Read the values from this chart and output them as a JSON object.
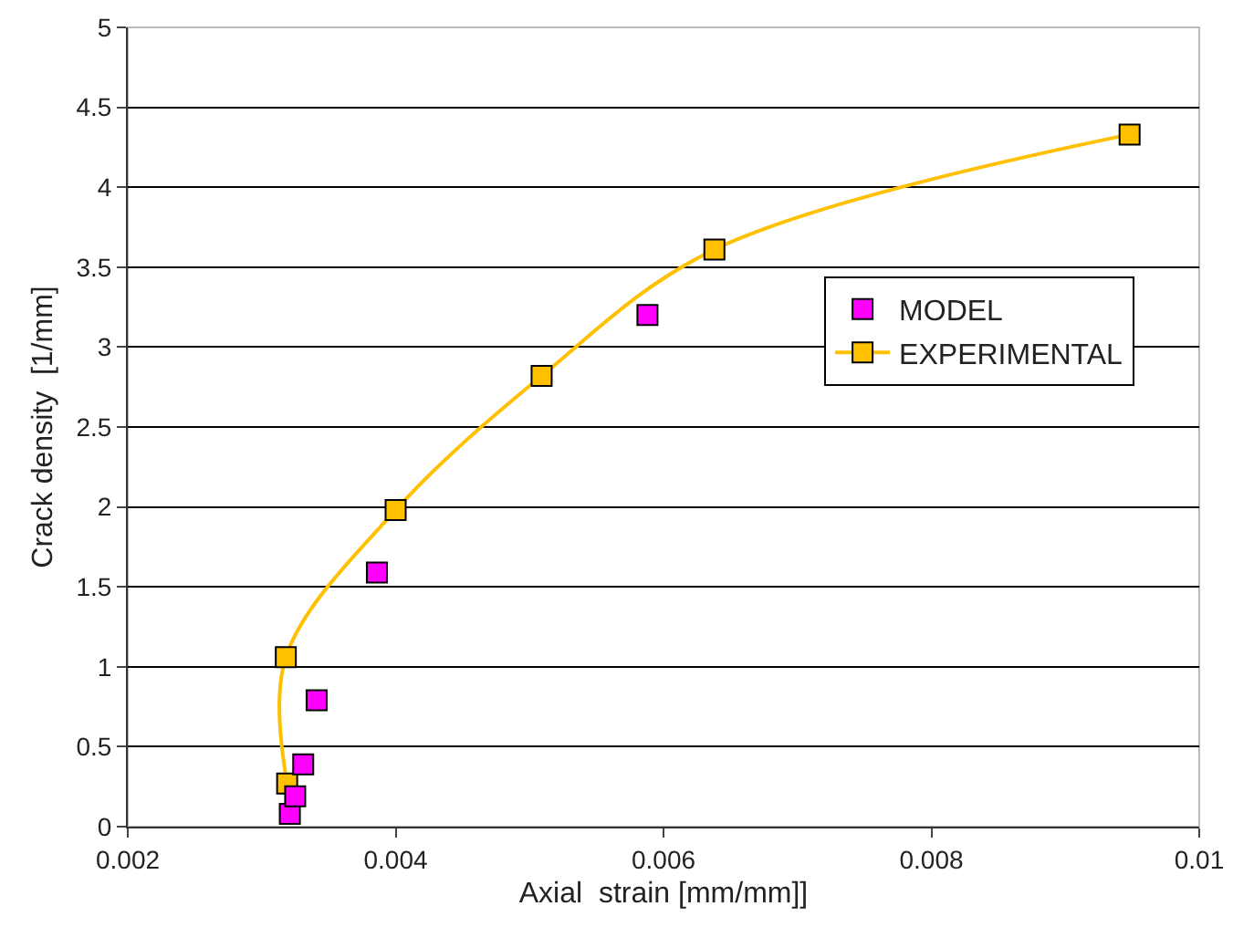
{
  "chart_data": {
    "type": "scatter",
    "xlabel": "Axial  strain [mm/mm]]",
    "ylabel": "Crack density  [1/mm]",
    "xlim": [
      0.002,
      0.01
    ],
    "xticks": [
      0.002,
      0.004,
      0.006,
      0.008,
      0.01
    ],
    "ylim": [
      0,
      5
    ],
    "yticks": [
      0,
      0.5,
      1,
      1.5,
      2,
      2.5,
      3,
      3.5,
      4,
      4.5,
      5
    ],
    "grid": "y",
    "legend": "right",
    "marker": "square",
    "series": [
      {
        "name": "MODEL",
        "color": "#ff00ff",
        "x": [
          0.00321,
          0.00325,
          0.00331,
          0.00341,
          0.00386,
          0.00588
        ],
        "values": [
          0.08,
          0.19,
          0.39,
          0.79,
          1.59,
          3.2
        ]
      },
      {
        "name": "EXPERIMENTAL",
        "type": "line",
        "color": "#ffc000",
        "x": [
          0.00319,
          0.00318,
          0.004,
          0.00509,
          0.00638,
          0.00948
        ],
        "values": [
          0.27,
          1.06,
          1.98,
          2.82,
          3.61,
          4.33
        ]
      }
    ]
  }
}
